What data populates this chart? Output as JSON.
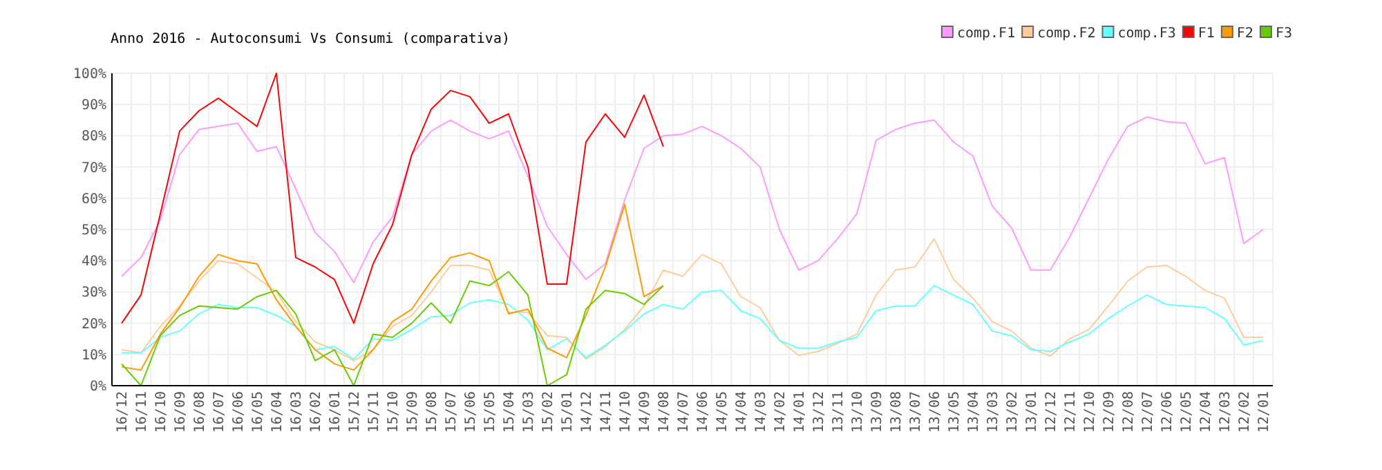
{
  "chart_data": {
    "type": "line",
    "title": "Anno 2016 - Autoconsumi Vs Consumi (comparativa)",
    "categories": [
      "16/12",
      "16/11",
      "16/10",
      "16/09",
      "16/08",
      "16/07",
      "16/06",
      "16/05",
      "16/04",
      "16/03",
      "16/02",
      "16/01",
      "15/12",
      "15/11",
      "15/10",
      "15/09",
      "15/08",
      "15/07",
      "15/06",
      "15/05",
      "15/04",
      "15/03",
      "15/02",
      "15/01",
      "14/12",
      "14/11",
      "14/10",
      "14/09",
      "14/08",
      "14/07",
      "14/06",
      "14/05",
      "14/04",
      "14/03",
      "14/02",
      "14/01",
      "13/12",
      "13/11",
      "13/10",
      "13/09",
      "13/08",
      "13/07",
      "13/06",
      "13/05",
      "13/04",
      "13/03",
      "13/02",
      "13/01",
      "12/12",
      "12/11",
      "12/10",
      "12/09",
      "12/08",
      "12/07",
      "12/06",
      "12/05",
      "12/04",
      "12/03",
      "12/02",
      "12/01"
    ],
    "series": [
      {
        "name": "comp.F1",
        "color": "#ff99ff",
        "values": [
          35,
          41,
          53,
          74,
          82,
          83,
          84,
          75,
          76.5,
          63,
          49,
          43,
          33,
          46,
          54,
          74,
          81.5,
          85,
          81.5,
          79,
          81.5,
          67,
          51,
          42,
          34,
          39,
          59.5,
          76,
          80,
          80.5,
          83,
          80,
          76,
          70,
          50,
          37,
          40,
          47,
          55,
          78.5,
          82,
          84,
          85,
          78,
          73.5,
          57.5,
          50.5,
          37,
          37,
          47.5,
          60,
          72.5,
          83,
          86,
          84.5,
          84,
          71,
          73,
          45.5,
          50
        ]
      },
      {
        "name": "comp.F2",
        "color": "#ffcc99",
        "values": [
          11.5,
          10.5,
          19,
          25.5,
          33.5,
          40,
          39,
          34.5,
          30,
          20.5,
          14,
          11.5,
          8,
          11.5,
          19,
          22.5,
          30,
          38.5,
          38.5,
          37,
          23.5,
          23.5,
          16,
          15.5,
          8.5,
          12.5,
          18,
          25.5,
          37,
          35,
          42,
          39,
          28.5,
          25,
          14.5,
          9.7,
          11,
          13.5,
          16.5,
          29,
          37,
          38,
          47,
          34,
          28,
          20.5,
          17.5,
          12,
          9.5,
          15,
          18,
          25.5,
          33.5,
          38,
          38.5,
          35,
          30.5,
          28,
          15.5,
          15.5
        ]
      },
      {
        "name": "comp.F3",
        "color": "#66ffff",
        "values": [
          10.5,
          10.5,
          15.5,
          17.5,
          23,
          26,
          25,
          25,
          22.5,
          19,
          11.5,
          12.5,
          8.5,
          15,
          14.5,
          18,
          22,
          22.5,
          26.5,
          27.5,
          26,
          21,
          11.5,
          15,
          9,
          13,
          17.5,
          23,
          26,
          24.5,
          30,
          30.5,
          24,
          21.5,
          14.5,
          12,
          12,
          14,
          15.5,
          24,
          25.5,
          25.5,
          32,
          29,
          26,
          17.5,
          16,
          11.5,
          11,
          14,
          16.5,
          21.5,
          25.5,
          29,
          26,
          25.5,
          25,
          21.5,
          13,
          14.5
        ]
      },
      {
        "name": "F1",
        "color": "#ff0000",
        "values": [
          20,
          29,
          55,
          81.5,
          88,
          92,
          87.5,
          83,
          100,
          41,
          38,
          34,
          20,
          39,
          51.5,
          74,
          88.5,
          94.5,
          92.5,
          84,
          87,
          70,
          32.5,
          32.5,
          78,
          87,
          79.5,
          93,
          76.5,
          null,
          null,
          null,
          null,
          null,
          null,
          null,
          null,
          null,
          null,
          null,
          null,
          null,
          null,
          null,
          null,
          null,
          null,
          null,
          null,
          null,
          null,
          null,
          null,
          null,
          null,
          null,
          null,
          null,
          null,
          null
        ]
      },
      {
        "name": "F2",
        "color": "#ff9900",
        "values": [
          6,
          5,
          16.5,
          25,
          35,
          42,
          40,
          39,
          27.5,
          19,
          11.5,
          7,
          5,
          11.5,
          20.5,
          24.5,
          33.5,
          41,
          42.5,
          40,
          23,
          24.5,
          12,
          9,
          22.5,
          38,
          58,
          28.5,
          32,
          null,
          null,
          null,
          null,
          null,
          null,
          null,
          null,
          null,
          null,
          null,
          null,
          null,
          null,
          null,
          null,
          null,
          null,
          null,
          null,
          null,
          null,
          null,
          null,
          null,
          null,
          null,
          null,
          null,
          null,
          null
        ]
      },
      {
        "name": "F3",
        "color": "#66cc00",
        "values": [
          7,
          0,
          16,
          22.5,
          25.5,
          25,
          24.5,
          28.5,
          30.5,
          23,
          8,
          11.5,
          0,
          16.5,
          15.5,
          20,
          26.5,
          20,
          33.5,
          32,
          36.5,
          29,
          0,
          3.5,
          24.5,
          30.5,
          29.5,
          26,
          32,
          null,
          null,
          null,
          null,
          null,
          null,
          null,
          null,
          null,
          null,
          null,
          null,
          null,
          null,
          null,
          null,
          null,
          null,
          null,
          null,
          null,
          null,
          null,
          null,
          null,
          null,
          null,
          null,
          null,
          null,
          null
        ]
      }
    ],
    "ylim": [
      0,
      100
    ],
    "yticks": [
      {
        "value": 0,
        "label": "0%"
      },
      {
        "value": 10,
        "label": "10%"
      },
      {
        "value": 20,
        "label": "20%"
      },
      {
        "value": 30,
        "label": "30%"
      },
      {
        "value": 40,
        "label": "40%"
      },
      {
        "value": 50,
        "label": "50%"
      },
      {
        "value": 60,
        "label": "60%"
      },
      {
        "value": 70,
        "label": "70%"
      },
      {
        "value": 80,
        "label": "80%"
      },
      {
        "value": 90,
        "label": "90%"
      },
      {
        "value": 100,
        "label": "100%"
      }
    ],
    "grid": true,
    "legend": "top right",
    "marker": "none",
    "line_style": "solid"
  }
}
